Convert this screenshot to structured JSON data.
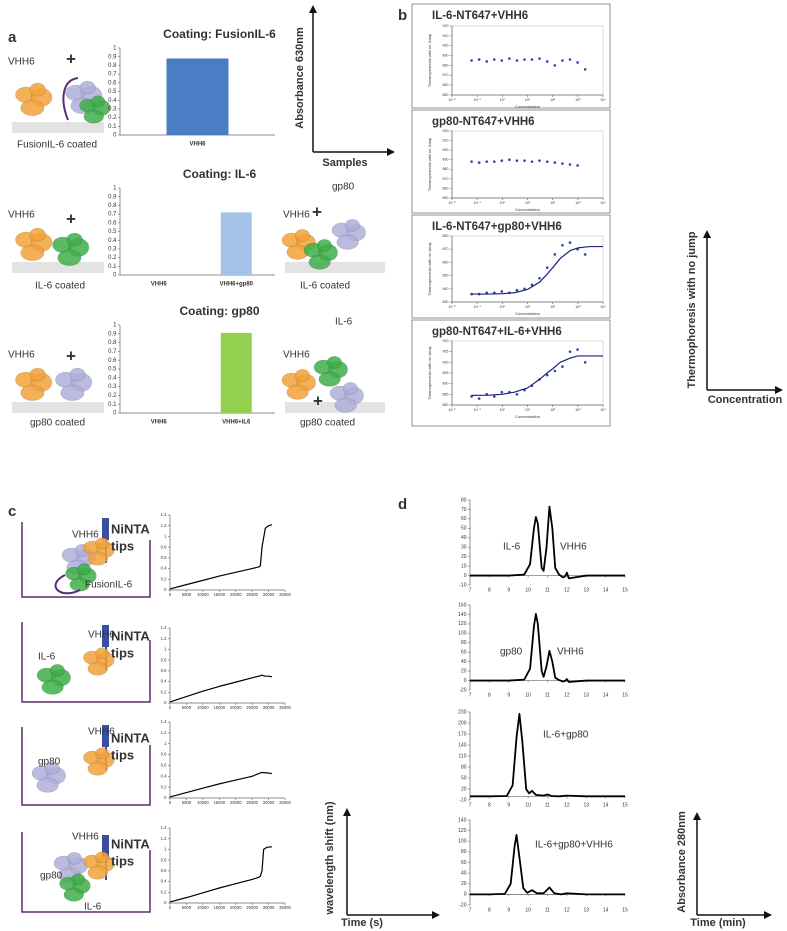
{
  "figure": {
    "panel_letters": [
      "a",
      "b",
      "c",
      "d"
    ],
    "labels": [
      "VHH6",
      "+",
      "FusionIL-6 coated",
      "VHH6",
      "+",
      "IL-6 coated",
      "VHH6",
      "+",
      "gp80",
      "IL-6 coated",
      "VHH6",
      "+",
      "gp80 coated",
      "VHH6",
      "+",
      "IL-6",
      "gp80 coated",
      "VHH6",
      "NiNTA",
      "tips",
      "FusionIL-6",
      "VHH6",
      "NiNTA",
      "tips",
      "IL-6",
      "VHH6",
      "NiNTA",
      "tips",
      "gp80",
      "VHH6",
      "NiNTA",
      "tips",
      "gp80",
      "IL-6"
    ],
    "sketch_axes": [
      {
        "ylabel": "Absorbance 630nm",
        "xlabel": "Samples"
      },
      {
        "ylabel": "Thermophoresis with no jump",
        "xlabel": "Concentration"
      },
      {
        "ylabel": "wavelength shift (nm)",
        "xlabel": "Time (s)"
      },
      {
        "ylabel": "Absorbance 280nm",
        "xlabel": "Time (min)"
      }
    ]
  },
  "chart_data": [
    {
      "type": "bar",
      "title": "Coating: FusionIL-6",
      "categories": [
        "VHH6"
      ],
      "values": [
        0.88
      ],
      "color": "#4a7ec4",
      "ylim": [
        0,
        1
      ],
      "yticks": [
        0,
        0.1,
        0.2,
        0.3,
        0.4,
        0.5,
        0.6,
        0.7,
        0.8,
        0.9,
        1
      ]
    },
    {
      "type": "bar",
      "title": "Coating: IL-6",
      "categories": [
        "VHH6",
        "VHH6+gp80"
      ],
      "values": [
        0,
        0.72
      ],
      "color": "#a5c3e8",
      "ylim": [
        0,
        1
      ],
      "yticks": [
        0,
        0.1,
        0.2,
        0.3,
        0.4,
        0.5,
        0.6,
        0.7,
        0.8,
        0.9,
        1
      ]
    },
    {
      "type": "bar",
      "title": "Coating: gp80",
      "categories": [
        "VHH6",
        "VHH6+IL6"
      ],
      "values": [
        0,
        0.91
      ],
      "color": "#92d050",
      "ylim": [
        0,
        1
      ],
      "yticks": [
        0,
        0.1,
        0.2,
        0.3,
        0.4,
        0.5,
        0.6,
        0.7,
        0.8,
        0.9,
        1
      ]
    },
    {
      "type": "scatter",
      "title": "IL-6-NT647+VHH6",
      "xlabel": "Concentration",
      "ylabel": "Thermophoresis with no Jump",
      "xscale": "log",
      "xlim": [
        0.01,
        10000
      ],
      "xticks": [
        {
          "value": 0.01,
          "label": "10⁻²"
        },
        {
          "value": 0.1,
          "label": "10⁻¹"
        },
        {
          "value": 1,
          "label": "10⁰"
        },
        {
          "value": 10,
          "label": "10¹"
        },
        {
          "value": 100,
          "label": "10²"
        },
        {
          "value": 1000,
          "label": "10³"
        },
        {
          "value": 10000,
          "label": "10⁴"
        }
      ],
      "ylim": [
        850,
        920
      ],
      "yticks": [
        850,
        860,
        870,
        880,
        890,
        900,
        910,
        920
      ],
      "series": [
        {
          "color": "#3040b0",
          "mode": "markers",
          "x": [
            0.06,
            0.12,
            0.24,
            0.48,
            0.95,
            1.9,
            3.8,
            7.6,
            15,
            30,
            61,
            122,
            244,
            488,
            977,
            1950
          ],
          "values": [
            885,
            886,
            884,
            886,
            885,
            887,
            885,
            886,
            886,
            887,
            884,
            880,
            885,
            886,
            883,
            876
          ]
        }
      ]
    },
    {
      "type": "scatter",
      "title": "gp80-NT647+VHH6",
      "xlabel": "Concentration",
      "ylabel": "Thermophoresis with no Jump",
      "xscale": "log",
      "xlim": [
        0.01,
        10000
      ],
      "xticks": [
        {
          "value": 0.01,
          "label": "10⁻²"
        },
        {
          "value": 0.1,
          "label": "10⁻¹"
        },
        {
          "value": 1,
          "label": "10⁰"
        },
        {
          "value": 10,
          "label": "10¹"
        },
        {
          "value": 100,
          "label": "10²"
        },
        {
          "value": 1000,
          "label": "10³"
        },
        {
          "value": 10000,
          "label": "10⁴"
        }
      ],
      "ylim": [
        850,
        920
      ],
      "yticks": [
        850,
        860,
        870,
        880,
        890,
        900,
        910,
        920
      ],
      "series": [
        {
          "color": "#3040b0",
          "mode": "markers",
          "x": [
            0.06,
            0.12,
            0.24,
            0.48,
            0.95,
            1.9,
            3.8,
            7.6,
            15,
            30,
            61,
            122,
            244,
            488,
            977
          ],
          "values": [
            888,
            887,
            888,
            888,
            889,
            890,
            889,
            889,
            888,
            889,
            888,
            887,
            886,
            885,
            884
          ]
        }
      ]
    },
    {
      "type": "scatter",
      "title": "IL-6-NT647+gp80+VHH6",
      "xlabel": "Concentration",
      "ylabel": "Thermophoresis with no Jump",
      "xscale": "log",
      "xlim": [
        0.01,
        10000
      ],
      "xticks": [
        {
          "value": 0.01,
          "label": "10⁻²"
        },
        {
          "value": 0.1,
          "label": "10⁻¹"
        },
        {
          "value": 1,
          "label": "10⁰"
        },
        {
          "value": 10,
          "label": "10¹"
        },
        {
          "value": 100,
          "label": "10²"
        },
        {
          "value": 1000,
          "label": "10³"
        },
        {
          "value": 10000,
          "label": "10⁴"
        }
      ],
      "ylim": [
        830,
        880
      ],
      "yticks": [
        830,
        840,
        850,
        860,
        870,
        880
      ],
      "series": [
        {
          "color": "#3040b0",
          "mode": "markers",
          "x": [
            0.06,
            0.12,
            0.24,
            0.48,
            0.95,
            1.9,
            3.8,
            7.6,
            15,
            30,
            61,
            122,
            244,
            488,
            977,
            1950
          ],
          "values": [
            836,
            836,
            837,
            837,
            838,
            837,
            839,
            840,
            843,
            848,
            856,
            866,
            873,
            875,
            870,
            866
          ]
        },
        {
          "color": "#1a237e",
          "mode": "lines",
          "x": [
            0.06,
            0.3,
            1,
            3,
            10,
            30,
            60,
            100,
            200,
            500,
            1000,
            3000,
            10000
          ],
          "values": [
            836,
            836,
            836.3,
            837,
            839.5,
            845,
            851,
            856,
            863,
            869,
            871,
            872,
            872
          ]
        }
      ]
    },
    {
      "type": "scatter",
      "title": "gp80-NT647+IL-6+VHH6",
      "xlabel": "Concentration",
      "ylabel": "Thermophoresis with no Jump",
      "xscale": "log",
      "xlim": [
        0.01,
        10000
      ],
      "xticks": [
        {
          "value": 0.01,
          "label": "10⁻²"
        },
        {
          "value": 0.1,
          "label": "10⁻¹"
        },
        {
          "value": 1,
          "label": "10⁰"
        },
        {
          "value": 10,
          "label": "10¹"
        },
        {
          "value": 100,
          "label": "10²"
        },
        {
          "value": 1000,
          "label": "10³"
        },
        {
          "value": 10000,
          "label": "10⁴"
        }
      ],
      "ylim": [
        880,
        910
      ],
      "yticks": [
        880,
        885,
        890,
        895,
        900,
        905,
        910
      ],
      "series": [
        {
          "color": "#3040b0",
          "mode": "markers",
          "x": [
            0.06,
            0.12,
            0.24,
            0.48,
            0.95,
            1.9,
            3.8,
            7.6,
            15,
            30,
            61,
            122,
            244,
            488,
            977,
            1950
          ],
          "values": [
            884,
            883,
            885,
            884,
            886,
            886,
            885,
            887,
            889,
            892,
            894,
            896,
            898,
            905,
            906,
            900
          ]
        },
        {
          "color": "#1a237e",
          "mode": "lines",
          "x": [
            0.06,
            0.3,
            1,
            3,
            10,
            30,
            60,
            100,
            200,
            500,
            1000,
            3000,
            10000
          ],
          "values": [
            884.5,
            884.6,
            885,
            886,
            888,
            892,
            895,
            897,
            900,
            902,
            903,
            903,
            903
          ]
        }
      ]
    },
    {
      "type": "line",
      "xlim": [
        0,
        35000
      ],
      "xticks": [
        0,
        5000,
        10000,
        15000,
        20000,
        25000,
        30000,
        35000
      ],
      "ylim": [
        0,
        1.4
      ],
      "yticks": [
        0,
        0.2,
        0.4,
        0.6,
        0.8,
        1,
        1.2,
        1.4
      ],
      "series": [
        {
          "color": "#000000",
          "x": [
            0,
            5000,
            10000,
            15000,
            20000,
            25000,
            27000,
            27500,
            28000,
            29000,
            30000,
            31000
          ],
          "values": [
            0.02,
            0.1,
            0.18,
            0.26,
            0.33,
            0.4,
            0.43,
            0.45,
            0.8,
            1.15,
            1.2,
            1.22
          ]
        }
      ]
    },
    {
      "type": "line",
      "xlim": [
        0,
        35000
      ],
      "xticks": [
        0,
        5000,
        10000,
        15000,
        20000,
        25000,
        30000,
        35000
      ],
      "ylim": [
        0,
        1.4
      ],
      "yticks": [
        0,
        0.2,
        0.4,
        0.6,
        0.8,
        1,
        1.2,
        1.4
      ],
      "series": [
        {
          "color": "#000000",
          "x": [
            0,
            5000,
            10000,
            15000,
            20000,
            25000,
            27000,
            28000,
            29000,
            30000,
            31000
          ],
          "values": [
            0.02,
            0.12,
            0.22,
            0.31,
            0.39,
            0.47,
            0.5,
            0.52,
            0.5,
            0.5,
            0.49
          ]
        }
      ]
    },
    {
      "type": "line",
      "xlim": [
        0,
        35000
      ],
      "xticks": [
        0,
        5000,
        10000,
        15000,
        20000,
        25000,
        30000,
        35000
      ],
      "ylim": [
        0,
        1.4
      ],
      "yticks": [
        0,
        0.2,
        0.4,
        0.6,
        0.8,
        1,
        1.2,
        1.4
      ],
      "series": [
        {
          "color": "#000000",
          "x": [
            0,
            5000,
            10000,
            15000,
            20000,
            25000,
            27000,
            28000,
            30000,
            31000
          ],
          "values": [
            0.02,
            0.1,
            0.18,
            0.26,
            0.33,
            0.4,
            0.45,
            0.47,
            0.46,
            0.45
          ]
        }
      ]
    },
    {
      "type": "line",
      "xlim": [
        0,
        35000
      ],
      "xticks": [
        0,
        5000,
        10000,
        15000,
        20000,
        25000,
        30000,
        35000
      ],
      "ylim": [
        0,
        1.4
      ],
      "yticks": [
        0,
        0.2,
        0.4,
        0.6,
        0.8,
        1,
        1.2,
        1.4
      ],
      "series": [
        {
          "color": "#000000",
          "x": [
            0,
            5000,
            10000,
            15000,
            20000,
            25000,
            27000,
            27500,
            28000,
            28500,
            29500,
            31000
          ],
          "values": [
            0.02,
            0.1,
            0.19,
            0.28,
            0.36,
            0.44,
            0.48,
            0.5,
            0.6,
            1.0,
            1.04,
            1.05
          ]
        }
      ]
    },
    {
      "type": "line",
      "annotations": [
        "IL-6",
        "VHH6"
      ],
      "xlim": [
        7,
        15
      ],
      "xticks": [
        7,
        8,
        9,
        10,
        11,
        12,
        13,
        14,
        15
      ],
      "ylim": [
        -10,
        80
      ],
      "yticks": [
        -10,
        0,
        10,
        20,
        30,
        40,
        50,
        60,
        70,
        80
      ],
      "series": [
        {
          "color": "#000000",
          "x": [
            7,
            8,
            9,
            9.8,
            10.1,
            10.3,
            10.4,
            10.5,
            10.7,
            10.8,
            10.95,
            11.1,
            11.25,
            11.4,
            11.6,
            11.8,
            11.9,
            12,
            12.1,
            13,
            14,
            15
          ],
          "values": [
            0,
            0,
            0,
            1,
            12,
            50,
            62,
            55,
            8,
            5,
            30,
            73,
            50,
            8,
            1,
            -2,
            -1,
            3,
            -3,
            0,
            0,
            0
          ]
        }
      ]
    },
    {
      "type": "line",
      "annotations": [
        "gp80",
        "VHH6"
      ],
      "xlim": [
        7,
        15
      ],
      "xticks": [
        7,
        8,
        9,
        10,
        11,
        12,
        13,
        14,
        15
      ],
      "ylim": [
        -20,
        160
      ],
      "yticks": [
        -20,
        0,
        20,
        40,
        60,
        80,
        100,
        120,
        140,
        160
      ],
      "series": [
        {
          "color": "#000000",
          "x": [
            7,
            8,
            9,
            9.8,
            10.1,
            10.3,
            10.4,
            10.5,
            10.7,
            10.8,
            10.95,
            11.1,
            11.25,
            11.4,
            11.6,
            11.8,
            11.9,
            12,
            12.1,
            13,
            14,
            15
          ],
          "values": [
            0,
            0,
            0,
            2,
            25,
            115,
            141,
            120,
            20,
            8,
            30,
            63,
            40,
            6,
            1,
            -2,
            -1,
            3,
            -3,
            0,
            0,
            0
          ]
        }
      ]
    },
    {
      "type": "line",
      "annotations": [
        "IL-6+gp80"
      ],
      "xlim": [
        7,
        15
      ],
      "xticks": [
        7,
        8,
        9,
        10,
        11,
        12,
        13,
        14,
        15
      ],
      "ylim": [
        -10,
        230
      ],
      "yticks": [
        -10,
        20,
        50,
        80,
        110,
        140,
        170,
        200,
        230
      ],
      "series": [
        {
          "color": "#000000",
          "x": [
            7,
            8,
            8.9,
            9.2,
            9.4,
            9.55,
            9.7,
            9.9,
            10.05,
            10.2,
            10.4,
            10.8,
            11,
            11.2,
            11.6,
            12,
            13,
            14,
            15
          ],
          "values": [
            0,
            0,
            1,
            30,
            160,
            225,
            150,
            20,
            8,
            15,
            4,
            2,
            5,
            1,
            0,
            2,
            0,
            0,
            0
          ]
        }
      ]
    },
    {
      "type": "line",
      "annotations": [
        "IL-6+gp80+VHH6"
      ],
      "xlim": [
        7,
        15
      ],
      "xticks": [
        7,
        8,
        9,
        10,
        11,
        12,
        13,
        14,
        15
      ],
      "ylim": [
        -20,
        140
      ],
      "yticks": [
        -20,
        0,
        20,
        40,
        60,
        80,
        100,
        120,
        140
      ],
      "series": [
        {
          "color": "#000000",
          "x": [
            7,
            8,
            8.8,
            9.1,
            9.3,
            9.4,
            9.55,
            9.75,
            9.95,
            10.2,
            10.45,
            10.8,
            11.1,
            11.35,
            11.7,
            12,
            13,
            14,
            15
          ],
          "values": [
            0,
            0,
            1,
            20,
            90,
            112,
            70,
            12,
            3,
            8,
            2,
            2,
            13,
            2,
            0,
            2,
            0,
            0,
            0
          ]
        }
      ]
    }
  ]
}
